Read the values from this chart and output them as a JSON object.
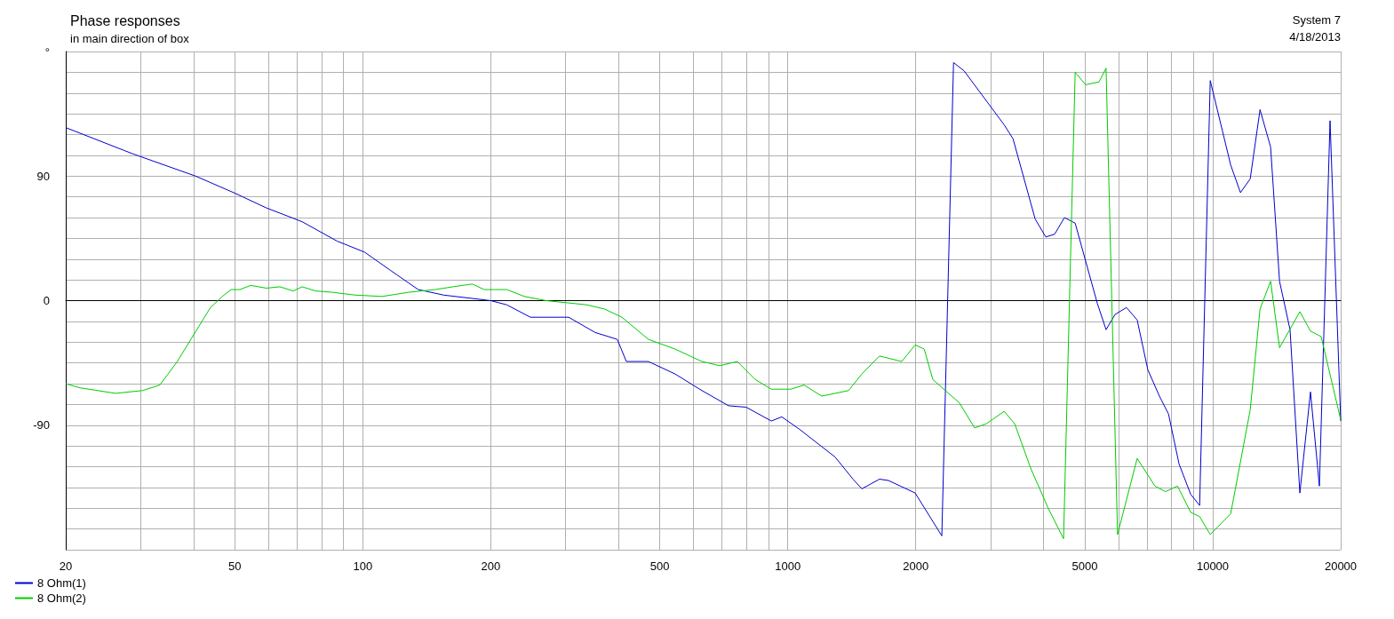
{
  "chart_data": {
    "type": "line",
    "title": "Phase responses",
    "subtitle": "in main direction of box",
    "annotations": [
      "System 7",
      "4/18/2013"
    ],
    "log": "x",
    "grid": true,
    "legend": "bottom left",
    "marker": "none",
    "line_style": "solid",
    "xlim": [
      20,
      20000
    ],
    "xticks": [
      20,
      {
        "value": 30,
        "label": null
      },
      {
        "value": 40,
        "label": null
      },
      50,
      {
        "value": 60,
        "label": null
      },
      {
        "value": 70,
        "label": null
      },
      {
        "value": 80,
        "label": null
      },
      {
        "value": 90,
        "label": null
      },
      100,
      200,
      {
        "value": 300,
        "label": null
      },
      {
        "value": 400,
        "label": null
      },
      500,
      {
        "value": 600,
        "label": null
      },
      {
        "value": 700,
        "label": null
      },
      {
        "value": 800,
        "label": null
      },
      {
        "value": 900,
        "label": null
      },
      1000,
      2000,
      {
        "value": 3000,
        "label": null
      },
      {
        "value": 4000,
        "label": null
      },
      5000,
      {
        "value": 6000,
        "label": null
      },
      {
        "value": 7000,
        "label": null
      },
      {
        "value": 8000,
        "label": null
      },
      {
        "value": 9000,
        "label": null
      },
      10000,
      20000
    ],
    "ylim": [
      -180,
      180
    ],
    "yticks": [
      {
        "value": -180,
        "label": null
      },
      {
        "value": -165,
        "label": null
      },
      {
        "value": -150,
        "label": null
      },
      {
        "value": -135,
        "label": null
      },
      {
        "value": -120,
        "label": null
      },
      {
        "value": -105,
        "label": null
      },
      -90,
      {
        "value": -75,
        "label": null
      },
      {
        "value": -60,
        "label": null
      },
      {
        "value": -45,
        "label": null
      },
      {
        "value": -30,
        "label": null
      },
      {
        "value": -15,
        "label": null
      },
      0,
      {
        "value": 15,
        "label": null
      },
      {
        "value": 30,
        "label": null
      },
      {
        "value": 45,
        "label": null
      },
      {
        "value": 60,
        "label": null
      },
      {
        "value": 75,
        "label": null
      },
      90,
      {
        "value": 105,
        "label": null
      },
      {
        "value": 120,
        "label": null
      },
      {
        "value": 135,
        "label": null
      },
      {
        "value": 150,
        "label": null
      },
      {
        "value": 165,
        "label": null
      },
      {
        "value": 180,
        "label": "°"
      }
    ],
    "series": [
      {
        "name": "8 Ohm(1)",
        "color": "#0000cc",
        "x": [
          20,
          28.8,
          40.4,
          49.7,
          59.3,
          72,
          87,
          101,
          116,
          135,
          155,
          200,
          218,
          248,
          305,
          352,
          397,
          417,
          470,
          543,
          628,
          726,
          798,
          915,
          968,
          1066,
          1292,
          1424,
          1494,
          1644,
          1726,
          1994,
          2304,
          2455,
          2600,
          3230,
          3388,
          3820,
          4046,
          4246,
          4478,
          4745,
          5350,
          5610,
          5890,
          6266,
          6640,
          7035,
          7490,
          7870,
          8330,
          8875,
          9314,
          9865,
          11020,
          11620,
          12250,
          12920,
          13680,
          14360,
          15200,
          16030,
          16980,
          17820,
          18880,
          20000
        ],
        "values": [
          125,
          106,
          90,
          78,
          67,
          57,
          43,
          35,
          22,
          8,
          4,
          0,
          -3,
          -12,
          -12,
          -23,
          -28,
          -44,
          -44,
          -53,
          -65,
          -76,
          -77,
          -87,
          -84,
          -93,
          -113,
          -129,
          -136,
          -129,
          -130,
          -139,
          -170,
          172,
          166,
          127,
          117,
          59,
          46,
          48,
          60,
          56,
          -2,
          -21,
          -10,
          -5,
          -14,
          -50,
          -69,
          -82,
          -118,
          -140,
          -148,
          159,
          98,
          78,
          88,
          138,
          111,
          14,
          -21,
          -139,
          -66,
          -134,
          130,
          -87
        ]
      },
      {
        "name": "8 Ohm(2)",
        "color": "#00cc00",
        "x": [
          20,
          21.6,
          26.2,
          30.3,
          33.3,
          36.6,
          43.8,
          46.7,
          49,
          51.4,
          54.5,
          59.3,
          63.8,
          68.6,
          72,
          77.4,
          85,
          96,
          111,
          128,
          148,
          163,
          181,
          193,
          218,
          240,
          270,
          336,
          370,
          407,
          470,
          543,
          628,
          692,
          761,
          838,
          915,
          1016,
          1092,
          1202,
          1390,
          1494,
          1644,
          1854,
          1994,
          2094,
          2194,
          2536,
          2752,
          2932,
          3230,
          3420,
          3728,
          4100,
          4456,
          4745,
          5020,
          5400,
          5610,
          5970,
          6640,
          7310,
          7740,
          8260,
          8875,
          9314,
          9865,
          11020,
          12250,
          12920,
          13680,
          14360,
          16030,
          16980,
          17990,
          20000
        ],
        "values": [
          -60,
          -63,
          -67,
          -65,
          -61,
          -44,
          -5,
          3,
          8,
          8,
          11,
          9,
          10,
          7,
          10,
          7,
          6,
          4,
          3,
          6,
          8,
          10,
          12,
          8,
          8,
          3,
          0,
          -3,
          -6,
          -12,
          -28,
          -35,
          -44,
          -47,
          -44,
          -57,
          -64,
          -64,
          -61,
          -69,
          -65,
          -53,
          -40,
          -44,
          -32,
          -35,
          -57,
          -74,
          -92,
          -89,
          -80,
          -89,
          -121,
          -150,
          -172,
          165,
          156,
          158,
          168,
          -169,
          -114,
          -134,
          -138,
          -134,
          -153,
          -156,
          -169,
          -154,
          -79,
          -6,
          14,
          -34,
          -8,
          -22,
          -26,
          -86
        ]
      }
    ]
  }
}
